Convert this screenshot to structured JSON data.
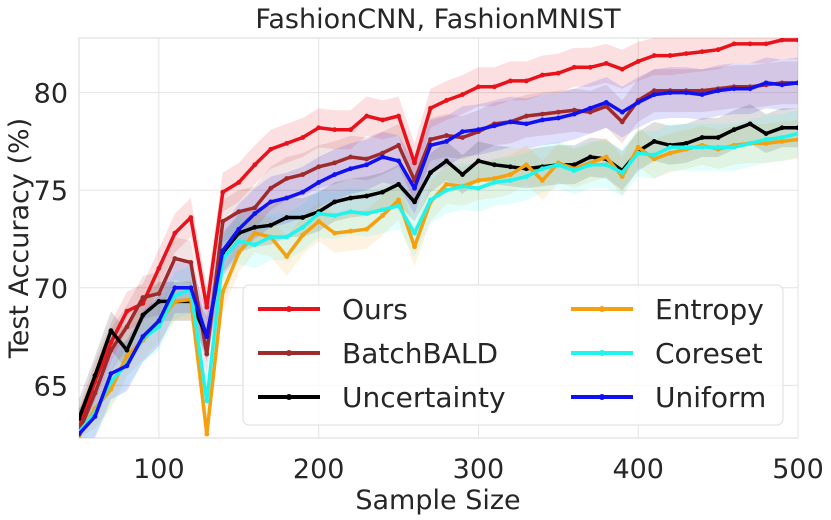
{
  "chart_data": {
    "type": "line",
    "title": "FashionCNN, FashionMNIST",
    "xlabel": "Sample Size",
    "ylabel": "Test Accuracy (%)",
    "xlim": [
      50,
      500
    ],
    "ylim": [
      62.3,
      82.8
    ],
    "xticks": [
      100,
      200,
      300,
      400,
      500
    ],
    "yticks": [
      65,
      70,
      75,
      80
    ],
    "grid": true,
    "legend_position": "lower-right",
    "legend_columns": 2,
    "x": [
      50,
      60,
      70,
      80,
      90,
      100,
      110,
      120,
      130,
      140,
      150,
      160,
      170,
      180,
      190,
      200,
      210,
      220,
      230,
      240,
      250,
      260,
      270,
      280,
      290,
      300,
      310,
      320,
      330,
      340,
      350,
      360,
      370,
      380,
      390,
      400,
      410,
      420,
      430,
      440,
      450,
      460,
      470,
      480,
      490,
      500
    ],
    "series": [
      {
        "name": "Ours",
        "color": "#e8121a",
        "band": 1.0,
        "values": [
          62.8,
          65.2,
          67.2,
          68.8,
          69.2,
          71.0,
          72.8,
          73.6,
          69.0,
          74.9,
          75.4,
          76.3,
          77.1,
          77.4,
          77.7,
          78.2,
          78.1,
          78.1,
          78.8,
          78.6,
          78.8,
          76.4,
          79.2,
          79.6,
          79.9,
          80.3,
          80.3,
          80.6,
          80.6,
          80.9,
          81.0,
          81.3,
          81.3,
          81.5,
          81.2,
          81.6,
          81.9,
          81.9,
          82.0,
          82.1,
          82.2,
          82.5,
          82.5,
          82.5,
          82.7,
          82.7
        ]
      },
      {
        "name": "BatchBALD",
        "color": "#9e2a2b",
        "band": 1.1,
        "values": [
          62.6,
          64.6,
          66.8,
          68.0,
          69.5,
          69.7,
          71.5,
          71.3,
          66.6,
          73.4,
          73.9,
          74.1,
          75.1,
          75.6,
          75.8,
          76.2,
          76.4,
          76.7,
          76.6,
          76.9,
          77.3,
          75.5,
          77.6,
          77.8,
          77.7,
          78.0,
          78.4,
          78.5,
          78.8,
          78.9,
          79.0,
          79.1,
          79.0,
          79.3,
          78.5,
          79.6,
          80.1,
          80.1,
          80.1,
          80.1,
          80.2,
          80.3,
          80.3,
          80.4,
          80.5,
          80.5
        ]
      },
      {
        "name": "Uncertainty",
        "color": "#000000",
        "band": 1.0,
        "values": [
          63.3,
          65.5,
          67.8,
          66.8,
          68.6,
          69.3,
          69.3,
          69.3,
          67.5,
          71.8,
          72.8,
          73.1,
          73.2,
          73.6,
          73.6,
          73.9,
          74.4,
          74.6,
          74.7,
          74.9,
          75.3,
          74.4,
          75.9,
          76.5,
          75.8,
          76.5,
          76.3,
          76.2,
          76.1,
          76.2,
          76.3,
          76.3,
          76.7,
          76.6,
          76.0,
          77.0,
          77.5,
          77.3,
          77.4,
          77.7,
          77.7,
          78.1,
          78.4,
          77.9,
          78.2,
          78.2
        ]
      },
      {
        "name": "Entropy",
        "color": "#f5a00e",
        "band": 1.0,
        "values": [
          62.4,
          63.8,
          64.8,
          66.5,
          67.3,
          68.2,
          69.3,
          69.4,
          62.5,
          69.8,
          71.8,
          72.8,
          72.6,
          71.6,
          72.7,
          73.4,
          72.8,
          72.9,
          73.0,
          73.7,
          74.5,
          72.1,
          74.4,
          75.3,
          75.2,
          75.5,
          75.6,
          75.8,
          76.3,
          75.5,
          76.4,
          76.1,
          76.4,
          76.7,
          75.7,
          77.2,
          76.6,
          76.9,
          77.1,
          77.3,
          77.1,
          77.3,
          77.4,
          77.4,
          77.5,
          77.6
        ]
      },
      {
        "name": "Coreset",
        "color": "#1ff5ec",
        "band": 1.2,
        "values": [
          62.6,
          63.6,
          65.2,
          66.1,
          67.4,
          68.0,
          69.6,
          69.9,
          64.2,
          71.5,
          72.4,
          72.2,
          72.6,
          72.6,
          73.1,
          73.8,
          73.7,
          73.9,
          73.8,
          74.0,
          74.2,
          72.8,
          74.5,
          75.0,
          75.2,
          75.1,
          75.4,
          75.5,
          75.7,
          76.1,
          76.3,
          76.0,
          76.3,
          76.3,
          75.9,
          76.9,
          76.8,
          77.2,
          77.2,
          77.2,
          77.2,
          77.2,
          77.4,
          77.6,
          77.7,
          77.9
        ]
      },
      {
        "name": "Uniform",
        "color": "#1010f0",
        "band": 1.3,
        "values": [
          62.5,
          63.4,
          65.6,
          66.0,
          67.5,
          68.3,
          70.0,
          70.0,
          67.5,
          71.9,
          73.0,
          73.8,
          74.4,
          74.6,
          74.9,
          75.4,
          75.8,
          76.1,
          76.3,
          76.7,
          76.5,
          75.1,
          77.3,
          77.5,
          78.0,
          78.1,
          78.3,
          78.5,
          78.4,
          78.6,
          78.7,
          78.9,
          79.2,
          79.5,
          79.0,
          79.5,
          79.9,
          80.0,
          80.0,
          79.9,
          80.1,
          80.2,
          80.2,
          80.5,
          80.4,
          80.5
        ]
      }
    ]
  }
}
